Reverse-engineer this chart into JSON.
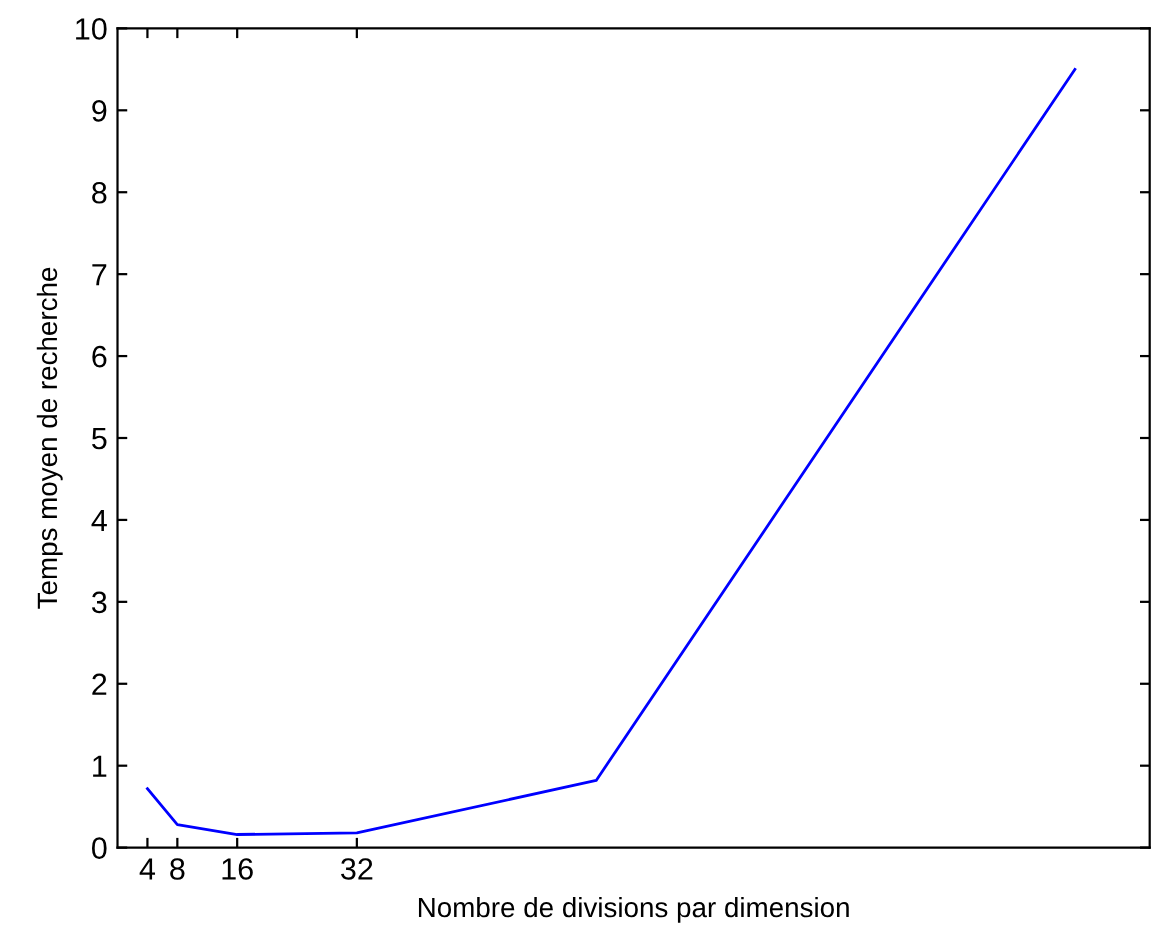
{
  "chart_data": {
    "type": "line",
    "xlabel": "Nombre de divisions par dimension",
    "ylabel": "Temps moyen de recherche",
    "x": [
      4,
      8,
      16,
      32,
      64,
      128
    ],
    "series": [
      {
        "color": "#0000ff",
        "values": [
          0.72,
          0.28,
          0.16,
          0.18,
          0.82,
          9.5
        ]
      }
    ],
    "xlim": [
      0,
      138
    ],
    "xticks": [
      4,
      8,
      16,
      32
    ],
    "ylim": [
      0,
      10
    ],
    "yticks": [
      0,
      1,
      2,
      3,
      4,
      5,
      6,
      7,
      8,
      9,
      10
    ],
    "grid": false,
    "legend": false,
    "marker": "none",
    "line_style": "solid"
  }
}
